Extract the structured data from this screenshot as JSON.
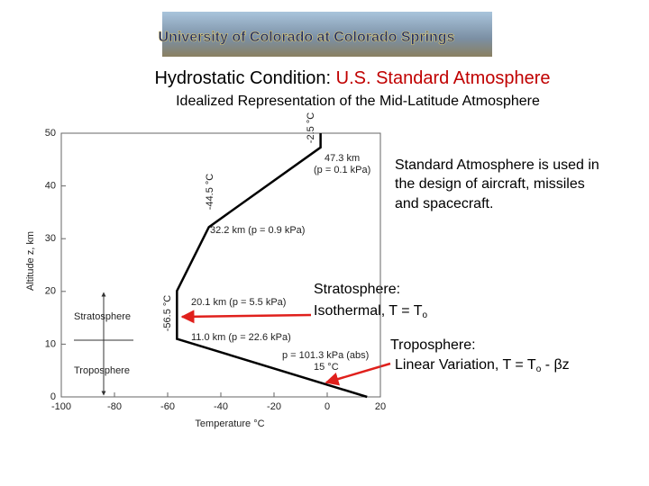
{
  "header": {
    "banner": "University of Colorado at Colorado Springs",
    "title_prefix": "Hydrostatic Condition: ",
    "title_highlight": "U.S. Standard Atmosphere",
    "subtitle": "Idealized Representation of the Mid-Latitude Atmosphere"
  },
  "notes": {
    "usage": [
      "Standard Atmosphere is used in",
      "the design of aircraft, missiles",
      "and spacecraft."
    ],
    "strat_title": "Stratosphere:",
    "strat_text": "Isothermal, T = T",
    "strat_sub": "o",
    "tropo_title": "Troposphere:",
    "tropo_text": "Linear Variation, T = T",
    "tropo_sub": "o",
    "tropo_tail": " - βz"
  },
  "chart_data": {
    "type": "line",
    "x_label": "Temperature °C",
    "y_label": "Altitude z, km",
    "x": [
      15,
      -56.5,
      -56.5,
      -44.5,
      -2.5,
      -2.5
    ],
    "values": [
      0,
      11.0,
      20.1,
      32.2,
      47.3,
      50
    ],
    "color": "#000000",
    "xlim": [
      -100,
      20
    ],
    "ylim": [
      0,
      50
    ],
    "xticks": [
      -100,
      -80,
      -60,
      -40,
      -20,
      0,
      20
    ],
    "yticks": [
      0,
      10,
      20,
      30,
      40,
      50
    ],
    "grid": false,
    "annotations": {
      "top_alt": "47.3 km",
      "top_p": "(p = 0.1 kPa)",
      "l32": "32.2 km (p = 0.9 kPa)",
      "l20": "20.1 km (p = 5.5 kPa)",
      "l11": "11.0 km (p = 22.6 kPa)",
      "l0": "p = 101.3 kPa (abs)",
      "t15": "15 °C",
      "t25": "-2.5 °C",
      "t445": "-44.5 °C",
      "t565": "-56.5 °C",
      "strat": "Stratosphere",
      "tropo": "Troposphere"
    }
  }
}
